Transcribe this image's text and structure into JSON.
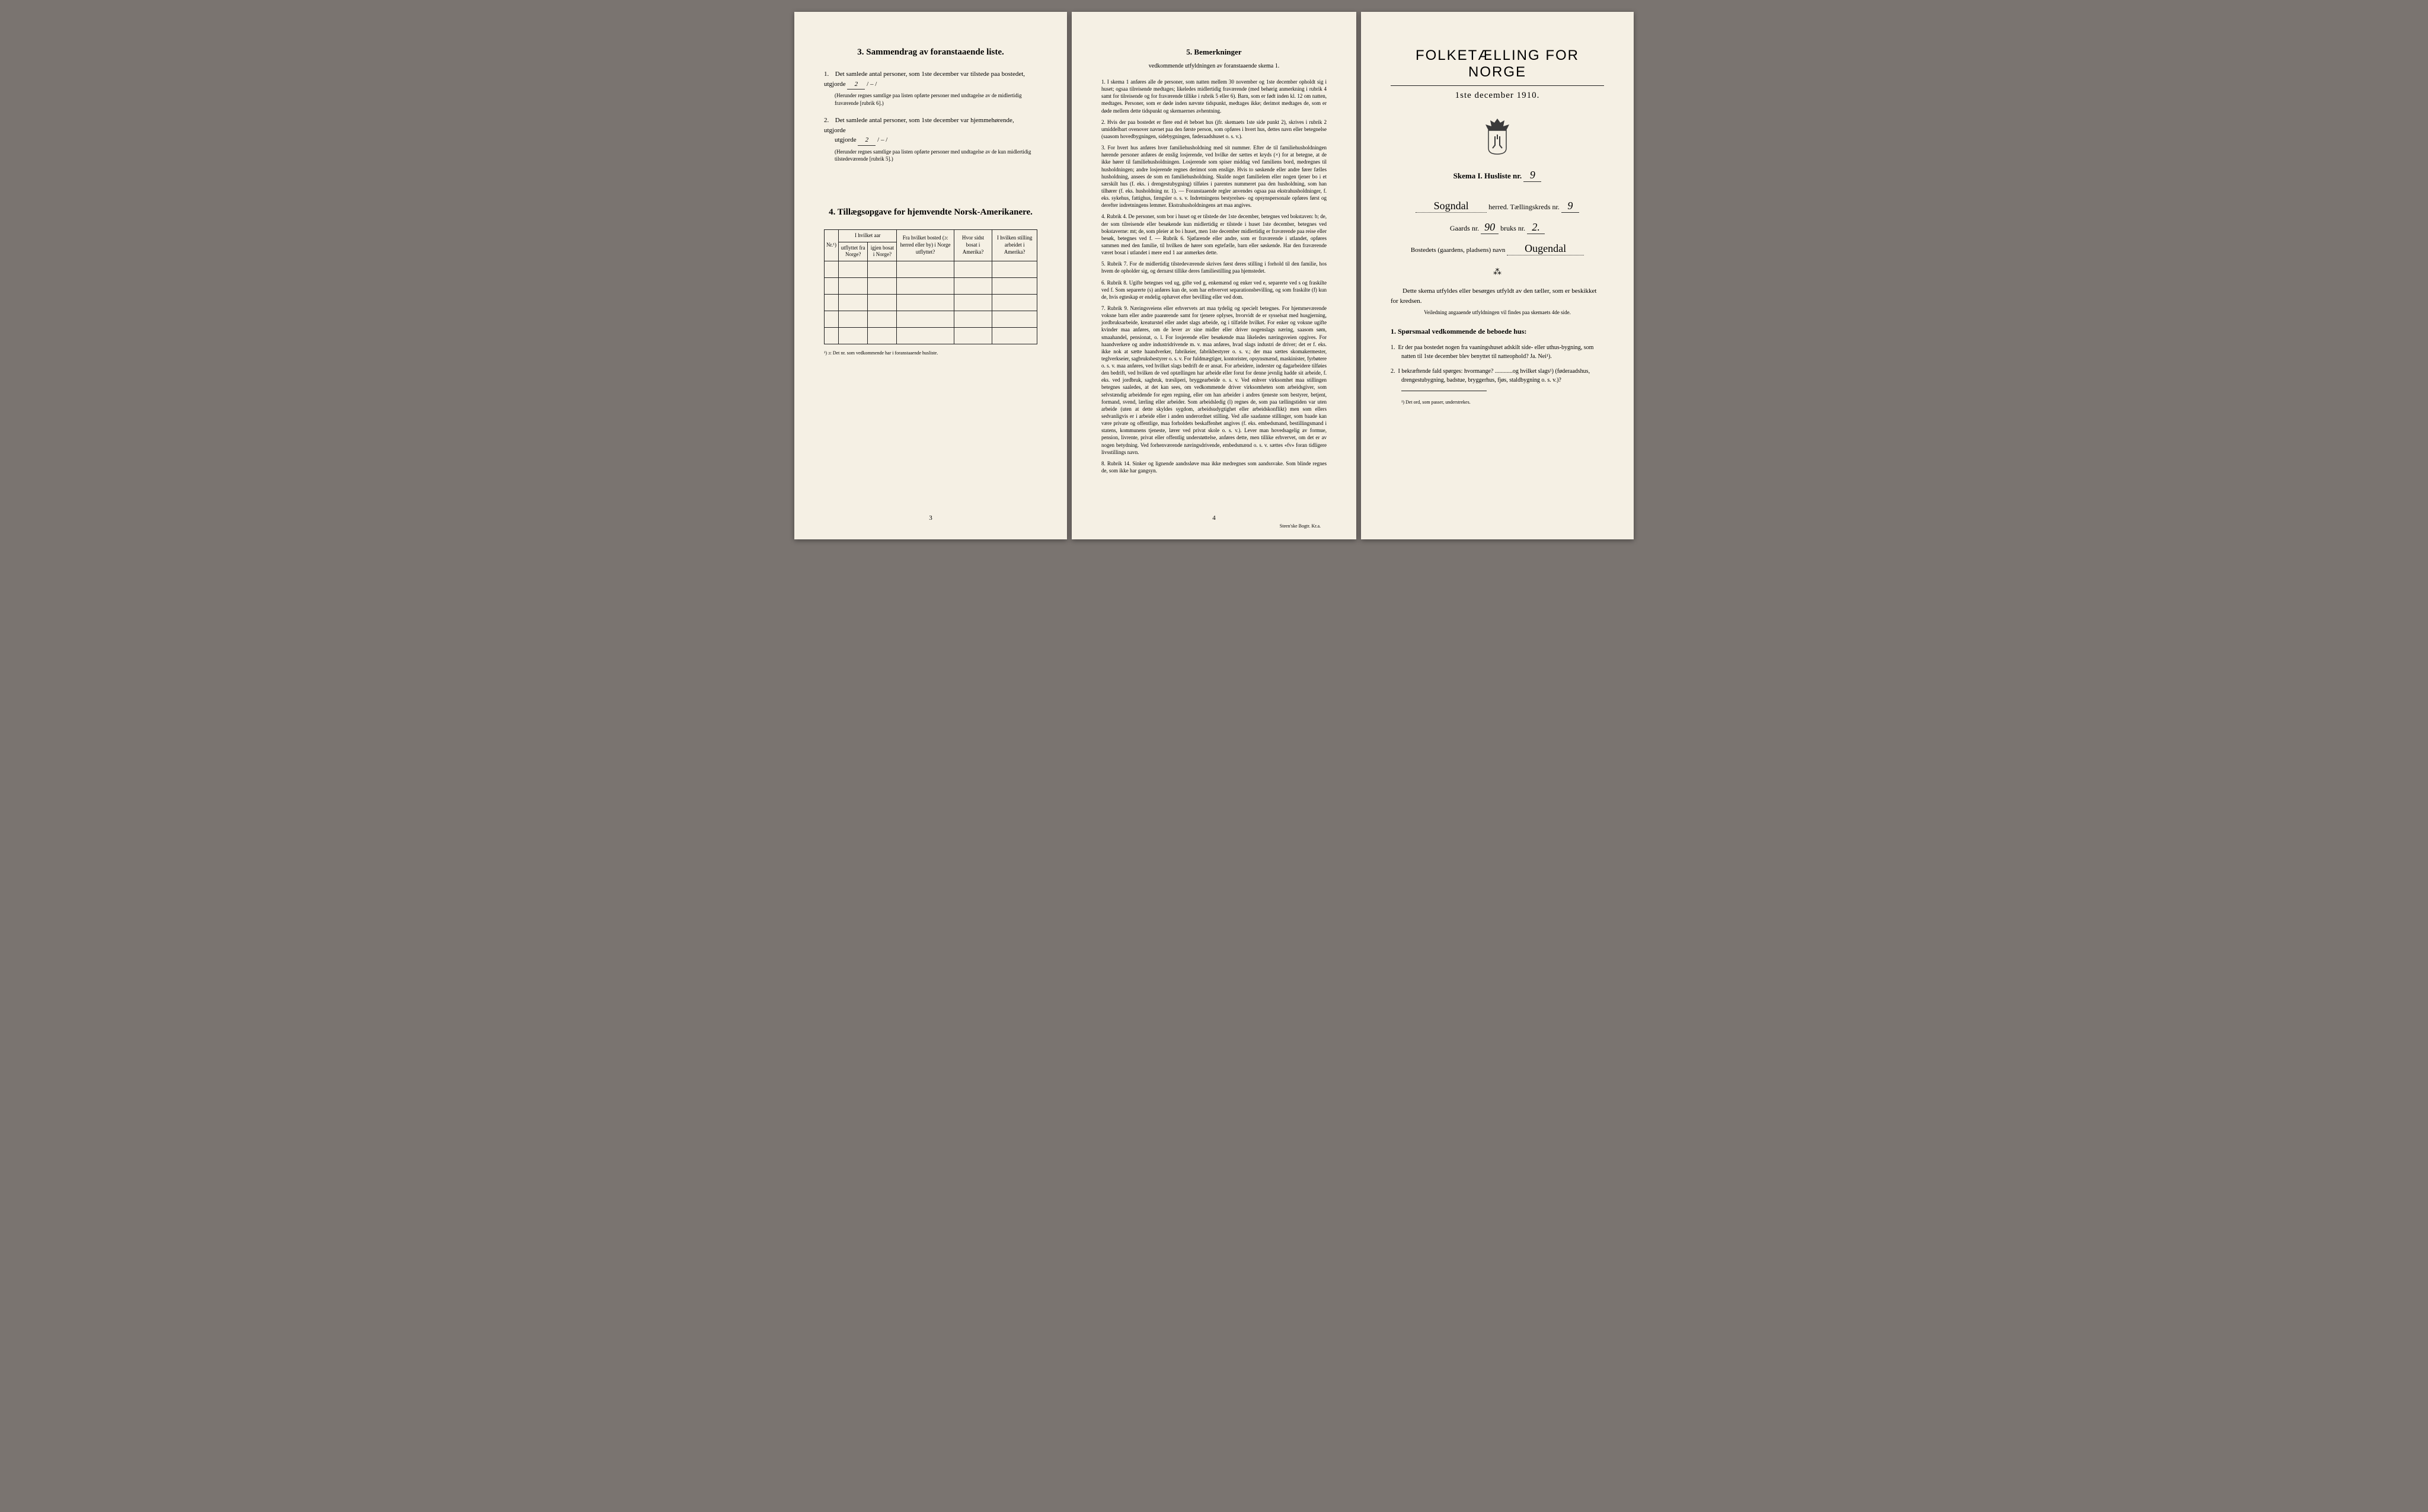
{
  "page_left": {
    "section3": {
      "title": "3.  Sammendrag av foranstaaende liste.",
      "item1_pre": "Det samlede antal personer, som 1ste december var tilstede paa bostedet, utgjorde",
      "item1_val": "2",
      "item1_sep": "/ – /",
      "item1_note": "(Herunder regnes samtlige paa listen opførte personer med undtagelse av de midlertidig fraværende [rubrik 6].)",
      "item2_pre": "Det samlede antal personer, som 1ste december var hjemmehørende, utgjorde",
      "item2_val": "2",
      "item2_sep": "/ – /",
      "item2_note": "(Herunder regnes samtlige paa listen opførte personer med undtagelse av de kun midlertidig tilstedeværende [rubrik 5].)"
    },
    "section4": {
      "title": "4.  Tillægsopgave for hjemvendte Norsk-Amerikanere.",
      "col_nr": "Nr.¹)",
      "col_aar_head": "I hvilket aar",
      "col_utflyttet": "utflyttet fra Norge?",
      "col_igjen": "igjen bosat i Norge?",
      "col_bosted": "Fra hvilket bosted (ɔ: herred eller by) i Norge utflyttet?",
      "col_sidst": "Hvor sidst bosat i Amerika?",
      "col_stilling": "I hvilken stilling arbeidet i Amerika?",
      "footnote": "¹) ɔ: Det nr. som vedkommende har i foranstaaende husliste.",
      "page_num": "3"
    }
  },
  "page_middle": {
    "title": "5.  Bemerkninger",
    "subtitle": "vedkommende utfyldningen av foranstaaende skema 1.",
    "items": [
      "I skema 1 anføres alle de personer, som natten mellem 30 november og 1ste december opholdt sig i huset; ogsaa tilreisende medtages; likeledes midlertidig fraværende (med behørig anmerkning i rubrik 4 samt for tilreisende og for fraværende tillike i rubrik 5 eller 6). Barn, som er født inden kl. 12 om natten, medtages. Personer, som er døde inden nævnte tidspunkt, medtages ikke; derimot medtages de, som er døde mellem dette tidspunkt og skemaernes avhentning.",
      "Hvis der paa bostedet er flere end ét beboet hus (jfr. skemaets 1ste side punkt 2), skrives i rubrik 2 umiddelbart ovenover navnet paa den første person, som opføres i hvert hus, dettes navn eller betegnelse (saasom hovedbygningen, sidebygningen, føderaadshuset o. s. v.).",
      "For hvert hus anføres hver familiehusholdning med sit nummer. Efter de til familiehusholdningen hørende personer anføres de enslig losjerende, ved hvilke der sættes et kryds (×) for at betegne, at de ikke hører til familiehusholdningen. Losjerende som spiser middag ved familiens bord, medregnes til husholdningen; andre losjerende regnes derimot som enslige. Hvis to søskende eller andre fører fælles husholdning, ansees de som en familiehusholdning. Skulde noget familielem eller nogen tjener bo i et særskilt hus (f. eks. i drengestubygning) tilføies i parentes nummeret paa den husholdning, som han tilhører (f. eks. husholdning nr. 1). — Foranstaaende regler anvendes ogsaa paa ekstrahusholdninger, f. eks. sykehus, fattighus, fængsler o. s. v. Indretningens bestyrelses- og opsynspersonale opføres først og derefter indretningens lemmer. Ekstrahusholdningens art maa angives.",
      "Rubrik 4. De personer, som bor i huset og er tilstede der 1ste december, betegnes ved bokstaven: b; de, der som tilreisende eller besøkende kun midlertidig er tilstede i huset 1ste december, betegnes ved bokstaverne: mt; de, som pleier at bo i huset, men 1ste december midlertidig er fraværende paa reise eller besøk, betegnes ved f. — Rubrik 6. Sjøfarende eller andre, som er fraværende i utlandet, opføres sammen med den familie, til hvilken de hører som egtefælle, barn eller søskende. Har den fraværende været bosat i utlandet i mere end 1 aar anmerkes dette.",
      "Rubrik 7. For de midlertidig tilstedeværende skrives først deres stilling i forhold til den familie, hos hvem de opholder sig, og dernæst tillike deres familiestilling paa hjemstedet.",
      "Rubrik 8. Ugifte betegnes ved ug, gifte ved g, enkemænd og enker ved e, separerte ved s og fraskilte ved f. Som separerte (s) anføres kun de, som har erhvervet separationsbevilling, og som fraskilte (f) kun de, hvis egteskap er endelig ophævet efter bevilling eller ved dom.",
      "Rubrik 9. Næringsveiens eller erhvervets art maa tydelig og specielt betegnes. For hjemmeværende voksne barn eller andre paarørende samt for tjenere oplyses, hvorvidt de er sysselsat med husgjerning, jordbruksarbeide, kreaturstel eller andet slags arbeide, og i tilfælde hvilket. For enker og voksne ugifte kvinder maa anføres, om de lever av sine midler eller driver nogenslags næring, saasom søm, smaahandel, pensionat, o. l. For losjerende eller besøkende maa likeledes næringsveien opgives. For haandverkere og andre industridrivende m. v. maa anføres, hvad slags industri de driver; det er f. eks. ikke nok at sætte haandverker, fabrikeier, fabrikbestyrer o. s. v.; der maa sættes skomakermester, teglverkseier, sagbruksbestyrer o. s. v. For fuldmægtiger, kontorister, opsynsmænd, maskinister, fyrbøtere o. s. v. maa anføres, ved hvilket slags bedrift de er ansat. For arbeidere, inderster og dagarbeidere tilføies den bedrift, ved hvilken de ved optællingen har arbeide eller forut for denne jevnlig hadde sit arbeide, f. eks. ved jordbruk, sagbruk, træsliperi, bryggearbeide o. s. v. Ved enhver virksomhet maa stillingen betegnes saaledes, at det kan sees, om vedkommende driver virksomheten som arbeidsgiver, som selvstændig arbeidende for egen regning, eller om han arbeider i andres tjeneste som bestyrer, betjent, formand, svend, lærling eller arbeider. Som arbeidsledig (l) regnes de, som paa tællingstiden var uten arbeide (uten at dette skyldes sygdom, arbeidsudygtighet eller arbeidskonflikt) men som ellers sedvanligvis er i arbeide eller i anden underordnet stilling. Ved alle saadanne stillinger, som baade kan være private og offentlige, maa forholdets beskaffenhet angives (f. eks. embedsmand, bestillingsmand i statens, kommunens tjeneste, lærer ved privat skole o. s. v.). Lever man hovedsagelig av formue, pension, livrente, privat eller offentlig understøttelse, anføres dette, men tillike erhvervet, om det er av nogen betydning. Ved forhenværende næringsdrivende, embedsmænd o. s. v. sættes «fv» foran tidligere livsstillings navn.",
      "Rubrik 14. Sinker og lignende aandssløve maa ikke medregnes som aandssvake. Som blinde regnes de, som ikke har gangsyn."
    ],
    "page_num": "4",
    "printer": "Steen'ske Bogtr.  Kr.a."
  },
  "page_right": {
    "big_title": "FOLKETÆLLING FOR NORGE",
    "date": "1ste december 1910.",
    "skema_label": "Skema I.  Husliste nr.",
    "skema_val": "9",
    "herred_name": "Sogndal",
    "herred_label": "herred.  Tællingskreds nr.",
    "kreds_val": "9",
    "gaards_label": "Gaards nr.",
    "gaards_val": "90",
    "bruks_label": "bruks nr.",
    "bruks_val": "2.",
    "bostedet_label": "Bostedets (gaardens, pladsens) navn",
    "bostedet_val": "Ougendal",
    "intro1": "Dette skema utfyldes eller besørges utfyldt av den tæller, som er beskikket for kredsen.",
    "intro2": "Veiledning angaaende utfyldningen vil findes paa skemaets 4de side.",
    "sporsmaal_title": "1.  Spørsmaal vedkommende de beboede hus:",
    "q1": "Er der paa bostedet nogen fra vaaningshuset adskilt side- eller uthus-bygning, som natten til 1ste december blev benyttet til natteophold?  Ja.  Nei¹).",
    "q2": "I bekræftende fald spørges: hvormange? ............og hvilket slags¹) (føderaadshus, drengestubygning, badstue, bryggerhus, fjøs, staldbygning o. s. v.)?",
    "footnote": "¹) Det ord, som passer, understrekes."
  },
  "colors": {
    "paper": "#f5f0e4",
    "ink": "#1a1a1a",
    "bg": "#7a7470"
  }
}
